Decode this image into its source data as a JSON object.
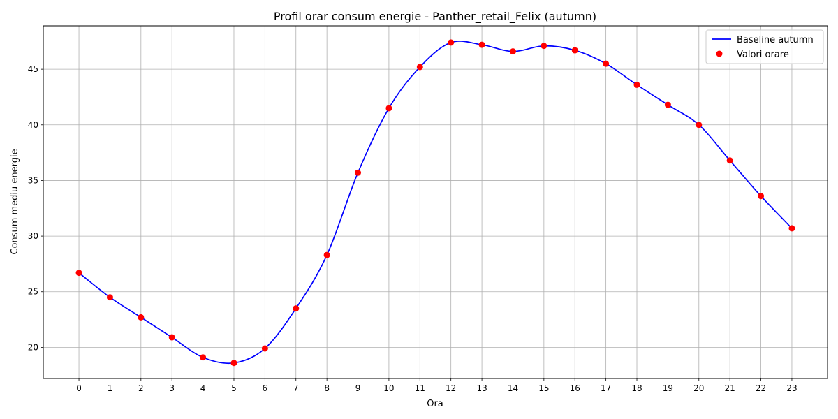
{
  "chart_data": {
    "type": "line",
    "title": "Profil orar consum energie - Panther_retail_Felix (autumn)",
    "xlabel": "Ora",
    "ylabel": "Consum mediu energie",
    "x": [
      0,
      1,
      2,
      3,
      4,
      5,
      6,
      7,
      8,
      9,
      10,
      11,
      12,
      13,
      14,
      15,
      16,
      17,
      18,
      19,
      20,
      21,
      22,
      23
    ],
    "xlim": [
      -1.15,
      24.15
    ],
    "ylim": [
      17.2,
      48.9
    ],
    "yticks": [
      20,
      25,
      30,
      35,
      40,
      45
    ],
    "grid": true,
    "legend_position": "top-right",
    "series": [
      {
        "name": "Baseline autumn",
        "kind": "line",
        "color": "#0000ff",
        "values": [
          26.7,
          24.5,
          22.7,
          20.9,
          19.1,
          18.6,
          19.9,
          23.5,
          28.3,
          35.7,
          41.5,
          45.2,
          47.4,
          47.2,
          46.6,
          47.1,
          46.7,
          45.5,
          43.6,
          41.8,
          40.0,
          36.8,
          33.6,
          30.7
        ]
      },
      {
        "name": "Valori orare",
        "kind": "scatter",
        "color": "#ff0000",
        "values": [
          26.7,
          24.5,
          22.7,
          20.9,
          19.1,
          18.6,
          19.9,
          23.5,
          28.3,
          35.7,
          41.5,
          45.2,
          47.4,
          47.2,
          46.6,
          47.1,
          46.7,
          45.5,
          43.6,
          41.8,
          40.0,
          36.8,
          33.6,
          30.7
        ]
      }
    ]
  }
}
